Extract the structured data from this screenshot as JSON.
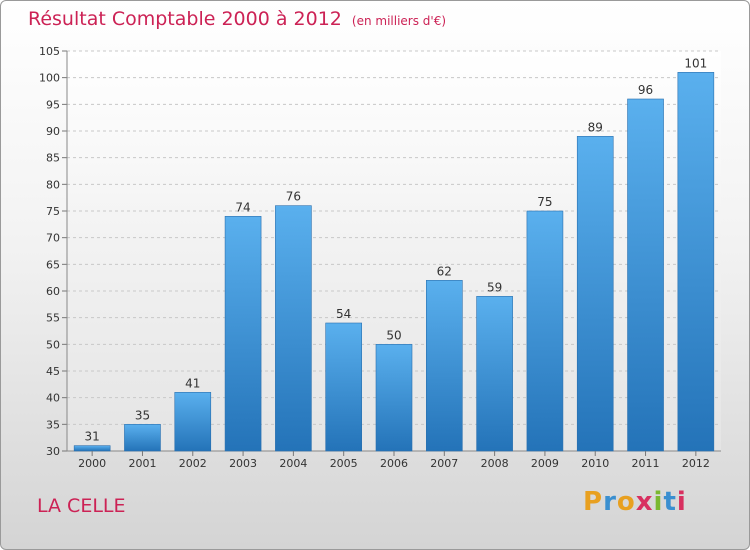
{
  "chart_data": {
    "type": "bar",
    "title": "Résultat Comptable 2000 à 2012",
    "subtitle": "(en milliers d'€)",
    "categories": [
      "2000",
      "2001",
      "2002",
      "2003",
      "2004",
      "2005",
      "2006",
      "2007",
      "2008",
      "2009",
      "2010",
      "2011",
      "2012"
    ],
    "values": [
      31,
      35,
      41,
      74,
      76,
      54,
      50,
      62,
      59,
      75,
      89,
      96,
      101
    ],
    "ylim": [
      30,
      105
    ],
    "yticks": [
      30,
      35,
      40,
      45,
      50,
      55,
      60,
      65,
      70,
      75,
      80,
      85,
      90,
      95,
      100,
      105
    ],
    "xlabel": "",
    "ylabel": "",
    "grid": true,
    "bar_color": "#3d8fd6",
    "title_color": "#cc2255"
  },
  "footer": {
    "place": "LA CELLE",
    "logo": [
      "P",
      "r",
      "o",
      "x",
      "i",
      "t",
      "i"
    ],
    "logo_colors": [
      "#e8a020",
      "#3a8fd0",
      "#e8a020",
      "#d83060",
      "#7ab830",
      "#3a8fd0",
      "#d83060"
    ]
  }
}
